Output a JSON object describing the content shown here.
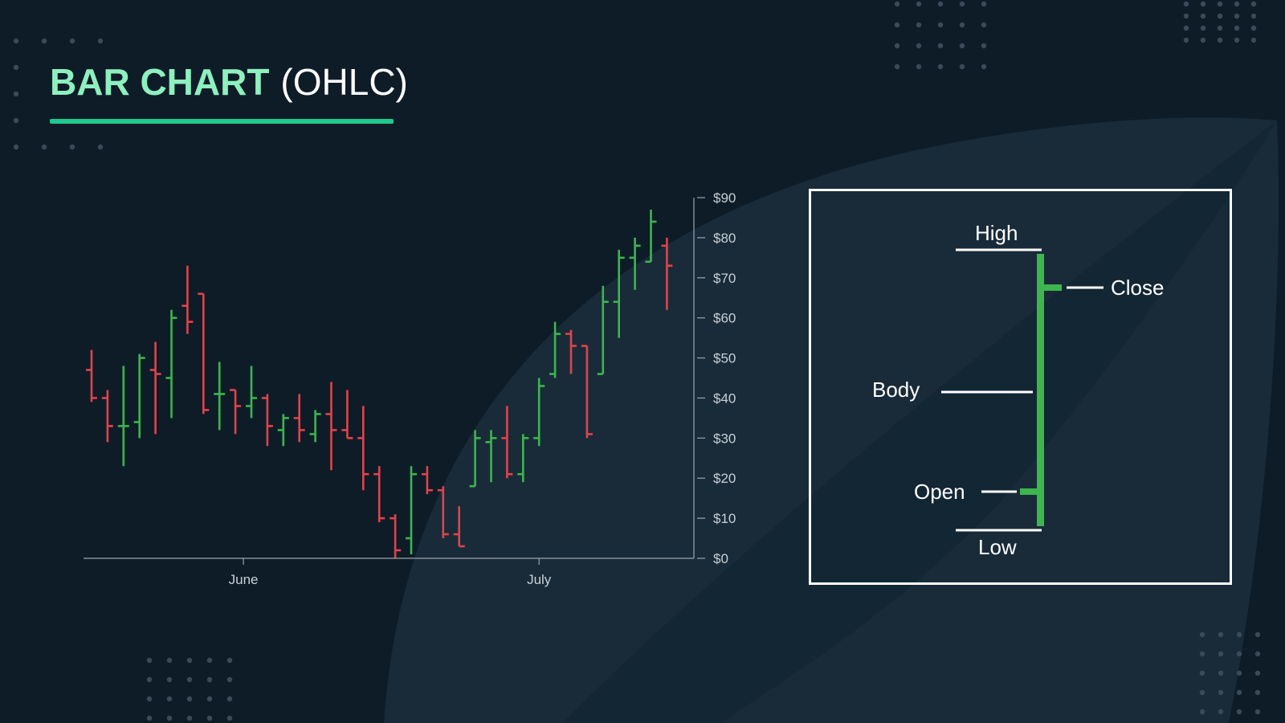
{
  "title": {
    "main": "BAR CHART",
    "sub": "(OHLC)"
  },
  "colors": {
    "background": "#0e1c28",
    "title_accent": "#8ef0be",
    "underline": "#1fc98b",
    "up": "#3cb64d",
    "down": "#e0434b",
    "axis": "#9aa5ad",
    "tick_text": "#c8d0d6",
    "dots": "#3a4a58"
  },
  "chart_data": {
    "type": "ohlc",
    "y_ticks": [
      "$0",
      "$10",
      "$20",
      "$30",
      "$40",
      "$50",
      "$60",
      "$70",
      "$80",
      "$90"
    ],
    "ylim": [
      0,
      90
    ],
    "x_ticks": [
      "June",
      "July"
    ],
    "grid": false,
    "bars": [
      {
        "o": 47,
        "h": 52,
        "l": 39,
        "c": 40
      },
      {
        "o": 40,
        "h": 42,
        "l": 29,
        "c": 33
      },
      {
        "o": 33,
        "h": 48,
        "l": 23,
        "c": 33
      },
      {
        "o": 34,
        "h": 51,
        "l": 30,
        "c": 50
      },
      {
        "o": 47,
        "h": 54,
        "l": 31,
        "c": 46
      },
      {
        "o": 45,
        "h": 62,
        "l": 35,
        "c": 60
      },
      {
        "o": 63,
        "h": 73,
        "l": 56,
        "c": 59
      },
      {
        "o": 66,
        "h": 66,
        "l": 36,
        "c": 37
      },
      {
        "o": 41,
        "h": 49,
        "l": 32,
        "c": 41
      },
      {
        "o": 42,
        "h": 42,
        "l": 31,
        "c": 38
      },
      {
        "o": 38,
        "h": 48,
        "l": 35,
        "c": 40
      },
      {
        "o": 40,
        "h": 41,
        "l": 28,
        "c": 33
      },
      {
        "o": 32,
        "h": 36,
        "l": 28,
        "c": 35
      },
      {
        "o": 35,
        "h": 41,
        "l": 29,
        "c": 32
      },
      {
        "o": 31,
        "h": 37,
        "l": 29,
        "c": 36
      },
      {
        "o": 36,
        "h": 44,
        "l": 22,
        "c": 32
      },
      {
        "o": 32,
        "h": 42,
        "l": 30,
        "c": 30
      },
      {
        "o": 30,
        "h": 38,
        "l": 17,
        "c": 21
      },
      {
        "o": 21,
        "h": 23,
        "l": 9,
        "c": 10
      },
      {
        "o": 10,
        "h": 11,
        "l": 0,
        "c": 2
      },
      {
        "o": 5,
        "h": 23,
        "l": 1,
        "c": 21
      },
      {
        "o": 21,
        "h": 23,
        "l": 16,
        "c": 17
      },
      {
        "o": 17,
        "h": 18,
        "l": 5,
        "c": 6
      },
      {
        "o": 6,
        "h": 13,
        "l": 3,
        "c": 3
      },
      {
        "o": 18,
        "h": 32,
        "l": 18,
        "c": 30
      },
      {
        "o": 29,
        "h": 32,
        "l": 19,
        "c": 30
      },
      {
        "o": 30,
        "h": 38,
        "l": 20,
        "c": 21
      },
      {
        "o": 21,
        "h": 31,
        "l": 19,
        "c": 30
      },
      {
        "o": 30,
        "h": 45,
        "l": 28,
        "c": 43
      },
      {
        "o": 46,
        "h": 59,
        "l": 45,
        "c": 56
      },
      {
        "o": 56,
        "h": 57,
        "l": 46,
        "c": 53
      },
      {
        "o": 53,
        "h": 53,
        "l": 30,
        "c": 31
      },
      {
        "o": 46,
        "h": 68,
        "l": 46,
        "c": 64
      },
      {
        "o": 64,
        "h": 77,
        "l": 55,
        "c": 75
      },
      {
        "o": 75,
        "h": 80,
        "l": 67,
        "c": 78
      },
      {
        "o": 74,
        "h": 87,
        "l": 74,
        "c": 84
      },
      {
        "o": 78,
        "h": 80,
        "l": 62,
        "c": 73
      }
    ]
  },
  "diagram": {
    "high": "High",
    "close": "Close",
    "body": "Body",
    "open": "Open",
    "low": "Low"
  }
}
